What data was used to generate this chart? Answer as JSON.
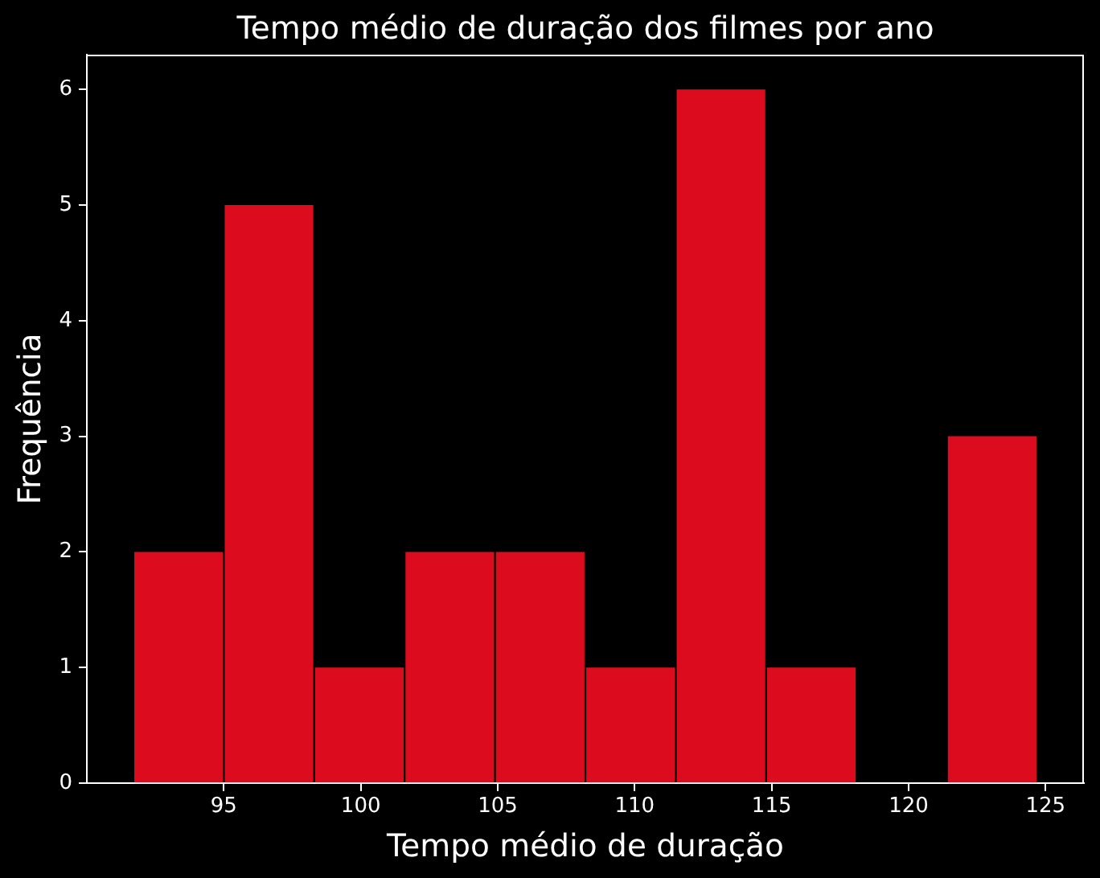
{
  "chart_data": {
    "type": "histogram",
    "title": "Tempo médio de duração dos filmes por ano",
    "xlabel": "Tempo médio de duração",
    "ylabel": "Frequência",
    "bins": [
      91.7,
      95.0,
      98.3,
      101.6,
      104.9,
      108.2,
      111.5,
      114.8,
      118.1,
      121.4,
      124.7
    ],
    "values": [
      2,
      5,
      1,
      2,
      2,
      1,
      6,
      1,
      0,
      3
    ],
    "color": "#dc0c1e",
    "xlim": [
      90.0,
      126.4
    ],
    "xticks": [
      95,
      100,
      105,
      110,
      115,
      120,
      125
    ],
    "ylim": [
      0,
      6.3
    ],
    "yticks": [
      0,
      1,
      2,
      3,
      4,
      5,
      6
    ]
  }
}
